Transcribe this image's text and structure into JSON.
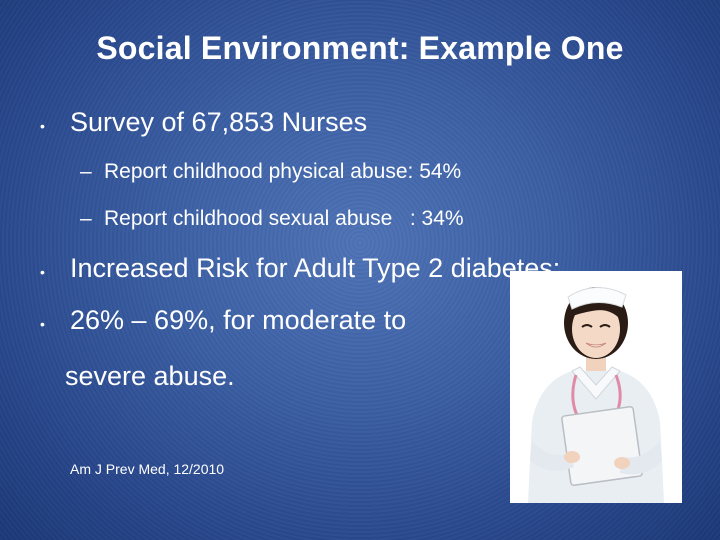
{
  "slide": {
    "title": "Social Environment: Example One",
    "bullet_1": "Survey of 67,853 Nurses",
    "sub_1": "Report childhood physical abuse: 54%",
    "sub_2": "Report childhood sexual abuse   : 34%",
    "bullet_2": "Increased Risk for Adult Type 2 diabetes:",
    "bullet_3": "26% – 69%, for moderate to",
    "bullet_3_cont": "severe abuse.",
    "citation": "Am J Prev Med, 12/2010",
    "dash_glyph": "–",
    "bullet_glyph": "•"
  },
  "image": {
    "subject": "nurse-photo"
  },
  "colors": {
    "bg_center": "#4e73b6",
    "bg_edge": "#1c3877",
    "text": "#ffffff"
  }
}
